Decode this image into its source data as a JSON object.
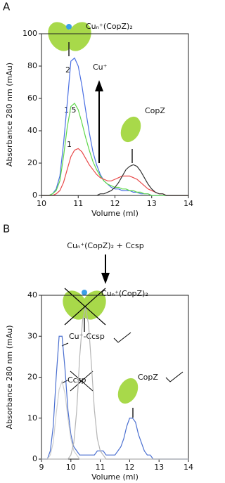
{
  "chart_data": [
    {
      "type": "line",
      "panel": "A",
      "xlabel": "Volume (ml)",
      "ylabel": "Absorbance 280 nm (mAu)",
      "xlim": [
        10,
        14
      ],
      "xticks": [
        10,
        11,
        12,
        13,
        14
      ],
      "ylim": [
        0,
        100
      ],
      "yticks": [
        0,
        20,
        40,
        60,
        80,
        100
      ],
      "annotations": [
        "Cuₙ⁺(CopZ)₂",
        "Cu⁺"
      ],
      "x": [
        10,
        10.1,
        10.2,
        10.3,
        10.4,
        10.5,
        10.6,
        10.7,
        10.8,
        10.9,
        11,
        11.1,
        11.2,
        11.3,
        11.4,
        11.5,
        11.6,
        11.7,
        11.8,
        11.9,
        12,
        12.1,
        12.2,
        12.3,
        12.4,
        12.5,
        12.6,
        12.7,
        12.8,
        12.9,
        13,
        13.1,
        13.2,
        13.3,
        13.4,
        13.5,
        13.6,
        13.7,
        13.8,
        13.9,
        14
      ],
      "series": [
        {
          "name": "2",
          "color": "#4a6fe3",
          "values": [
            0,
            0,
            0,
            1,
            4,
            12,
            32,
            57,
            83,
            85,
            80,
            68,
            53,
            39,
            27,
            19,
            13,
            9,
            7,
            5,
            4,
            4,
            3,
            3,
            3,
            2,
            2,
            1,
            1,
            1,
            0,
            0,
            0,
            0,
            0,
            0,
            0,
            0,
            0,
            0,
            0
          ]
        },
        {
          "name": "1.5",
          "color": "#5ed84a",
          "values": [
            0,
            0,
            0,
            1,
            3,
            9,
            24,
            42,
            55,
            57,
            53,
            45,
            36,
            28,
            21,
            16,
            12,
            9,
            7,
            6,
            5,
            5,
            4,
            4,
            3,
            3,
            2,
            2,
            1,
            1,
            0,
            0,
            0,
            0,
            0,
            0,
            0,
            0,
            0,
            0,
            0
          ]
        },
        {
          "name": "1",
          "color": "#e84a4a",
          "values": [
            0,
            0,
            0,
            0,
            1,
            3,
            8,
            16,
            24,
            28,
            29,
            27,
            23,
            19,
            16,
            13,
            11,
            10,
            9,
            9,
            10,
            11,
            12,
            12,
            12,
            11,
            10,
            8,
            6,
            4,
            3,
            2,
            1,
            1,
            0,
            0,
            0,
            0,
            0,
            0,
            0
          ]
        },
        {
          "name": "CopZ",
          "color": "#333333",
          "values": [
            0,
            0,
            0,
            0,
            0,
            0,
            0,
            0,
            0,
            0,
            0,
            0,
            0,
            0,
            0,
            0,
            1,
            1,
            2,
            3,
            5,
            8,
            12,
            16,
            18,
            19,
            18,
            15,
            11,
            7,
            4,
            2,
            1,
            1,
            0,
            0,
            0,
            0,
            0,
            0,
            0
          ]
        }
      ]
    },
    {
      "type": "line",
      "panel": "B",
      "title": "Cuₙ⁺(CopZ)₂ + Ccsp",
      "xlabel": "Volume (ml)",
      "ylabel": "Absorbance 280 nm (mAu)",
      "xlim": [
        9,
        14
      ],
      "xticks": [
        9,
        10,
        11,
        12,
        13,
        14
      ],
      "ylim": [
        0,
        40
      ],
      "yticks": [
        0,
        10,
        20,
        30,
        40
      ],
      "annotations": [
        "CopZ"
      ],
      "x": [
        9,
        9.1,
        9.2,
        9.3,
        9.4,
        9.5,
        9.6,
        9.7,
        9.8,
        9.9,
        10,
        10.1,
        10.2,
        10.3,
        10.4,
        10.5,
        10.6,
        10.7,
        10.8,
        10.9,
        11,
        11.1,
        11.2,
        11.3,
        11.4,
        11.5,
        11.6,
        11.7,
        11.8,
        11.9,
        12,
        12.1,
        12.2,
        12.3,
        12.4,
        12.5,
        12.6,
        12.7,
        12.8,
        12.9,
        13,
        13.1,
        13.2,
        13.3,
        13.4,
        13.5,
        13.6,
        13.7,
        13.8,
        13.9,
        14
      ],
      "series": [
        {
          "name": "Cu⁺-Ccsp",
          "color": "#4a6fd0",
          "values": [
            0,
            0,
            0,
            2,
            8,
            20,
            30,
            30,
            22,
            12,
            6,
            3,
            2,
            1,
            1,
            1,
            1,
            1,
            1,
            2,
            2,
            2,
            1,
            1,
            1,
            1,
            2,
            3,
            5,
            8,
            10,
            10,
            9,
            6,
            4,
            2,
            1,
            1,
            0,
            0,
            0,
            0,
            0,
            0,
            0,
            0,
            0,
            0,
            0,
            0,
            0
          ]
        },
        {
          "name": "Ccsp",
          "color": "#cfcfcf",
          "values": [
            0,
            0,
            0,
            1,
            4,
            11,
            17,
            19,
            16,
            10,
            5,
            2,
            1,
            0,
            0,
            0,
            0,
            0,
            0,
            0,
            0,
            0,
            0,
            0,
            0,
            0,
            0,
            0,
            0,
            0,
            0,
            0,
            0,
            0,
            0,
            0,
            0,
            0,
            0,
            0,
            0,
            0,
            0,
            0,
            0,
            0,
            0,
            0,
            0,
            0,
            0
          ]
        },
        {
          "name": "Cuₙ⁺(CopZ)₂",
          "color": "#b5b5b5",
          "values": [
            0,
            0,
            0,
            0,
            0,
            0,
            0,
            0,
            0,
            0,
            1,
            4,
            12,
            25,
            34,
            37,
            33,
            23,
            12,
            5,
            2,
            1,
            0,
            0,
            0,
            0,
            0,
            0,
            0,
            0,
            0,
            0,
            0,
            0,
            0,
            0,
            0,
            0,
            0,
            0,
            0,
            0,
            0,
            0,
            0,
            0,
            0,
            0,
            0,
            0,
            0
          ]
        }
      ]
    }
  ]
}
